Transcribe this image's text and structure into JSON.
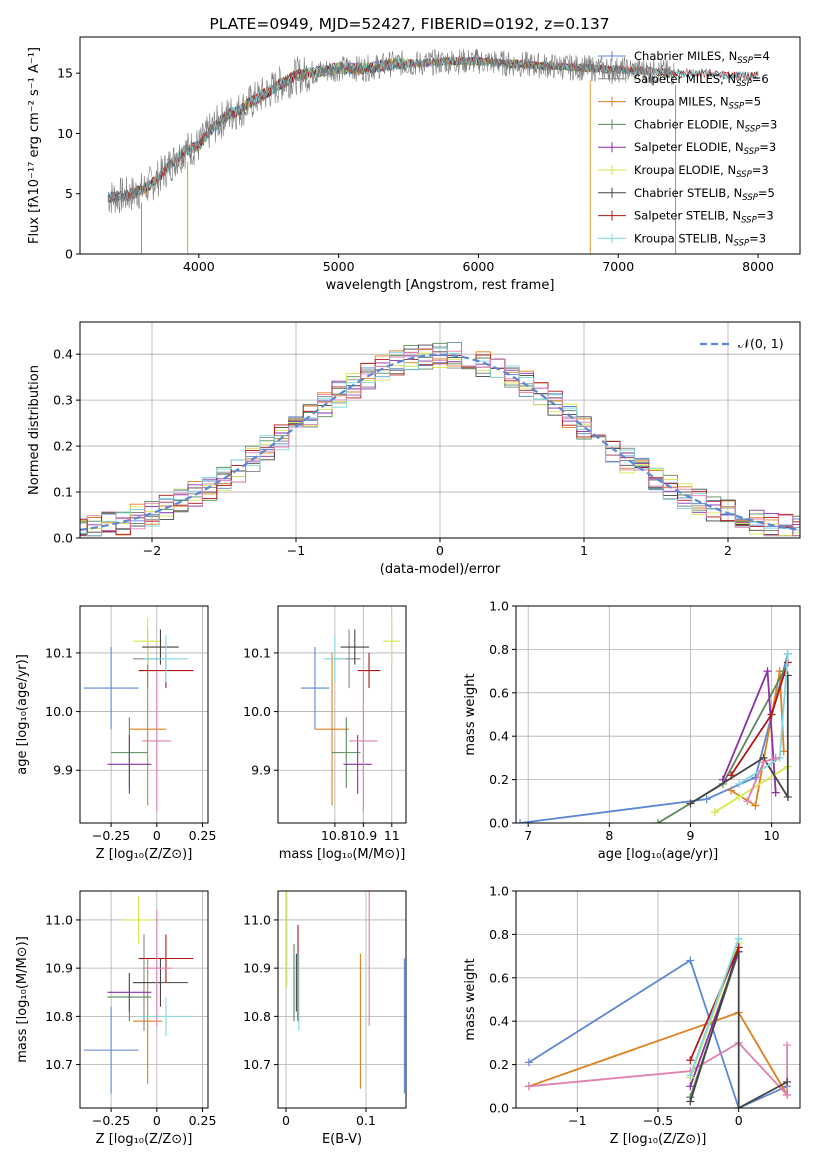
{
  "figure_title": "PLATE=0949, MJD=52427, FIBERID=0192, z=0.137",
  "colors": {
    "chabrier_miles": "#5b87d6",
    "salpeter_miles": "#888888",
    "kroupa_miles": "#e0801e",
    "chabrier_elodie": "#5a8a5a",
    "salpeter_elodie": "#8a2fa8",
    "kroupa_elodie": "#d6e84a",
    "chabrier_stelib": "#444444",
    "salpeter_stelib": "#b01818",
    "kroupa_stelib": "#7fd8e0",
    "pink": "#e07fb0",
    "normal_curve": "#5b87d6"
  },
  "chart_data": [
    {
      "id": "spectrum",
      "type": "line",
      "title": "PLATE=0949, MJD=52427, FIBERID=0192, z=0.137",
      "xlabel": "wavelength [Angstrom, rest frame]",
      "ylabel": "Flux [fλ10⁻¹⁷ erg cm⁻² s⁻¹ A⁻¹]",
      "xlim": [
        3150,
        8300
      ],
      "ylim": [
        0,
        18
      ],
      "xticks": [
        4000,
        5000,
        6000,
        7000,
        8000
      ],
      "yticks": [
        0,
        5,
        10,
        15
      ],
      "grid": false,
      "legend_position": "top-right",
      "legend": [
        "Chabrier MILES, N_SSP=4",
        "Salpeter MILES, N_SSP=6",
        "Kroupa MILES, N_SSP=5",
        "Chabrier ELODIE, N_SSP=3",
        "Salpeter ELODIE, N_SSP=3",
        "Kroupa ELODIE, N_SSP=3",
        "Chabrier STELIB, N_SSP=5",
        "Salpeter STELIB, N_SSP=3",
        "Kroupa STELIB, N_SSP=3"
      ],
      "continuum": {
        "x": [
          3350,
          3500,
          3600,
          3700,
          3800,
          3900,
          4000,
          4100,
          4200,
          4300,
          4400,
          4500,
          4600,
          4700,
          4800,
          5000,
          5200,
          5400,
          5600,
          5800,
          6000,
          6200,
          6500,
          6800,
          7000,
          7200,
          7400,
          7600,
          7800,
          8000
        ],
        "y": [
          4.7,
          4.9,
          5.3,
          6.2,
          7.5,
          8.6,
          9.0,
          10.5,
          11.5,
          12.0,
          12.8,
          13.5,
          14.2,
          14.8,
          15.0,
          15.4,
          15.4,
          15.8,
          15.8,
          16.0,
          16.0,
          15.8,
          15.6,
          15.4,
          15.3,
          15.2,
          15.0,
          15.0,
          14.8,
          14.8
        ]
      }
    },
    {
      "id": "residual_hist",
      "type": "bar",
      "xlabel": "(data-model)/error",
      "ylabel": "Normed distribution",
      "xlim": [
        -2.5,
        2.5
      ],
      "ylim": [
        0,
        0.47
      ],
      "xticks": [
        -2,
        -1,
        0,
        1,
        2
      ],
      "yticks": [
        0.0,
        0.1,
        0.2,
        0.3,
        0.4
      ],
      "grid": true,
      "legend_position": "top-right",
      "legend": [
        "𝒩(0, 1)"
      ]
    },
    {
      "id": "age_vs_Z",
      "type": "scatter",
      "xlabel": "Z [log₁₀(Z/Z⊙)]",
      "ylabel": "age [log₁₀(age/yr)]",
      "xlim": [
        -0.42,
        0.28
      ],
      "ylim": [
        9.81,
        10.18
      ],
      "xticks": [
        -0.25,
        0.0,
        0.25
      ],
      "yticks": [
        9.9,
        10.0,
        10.1
      ],
      "grid": true,
      "points": [
        {
          "x": -0.25,
          "y": 10.04,
          "xerr": 0.15,
          "yerr": 0.07,
          "color": "chabrier_miles"
        },
        {
          "x": -0.05,
          "y": 9.97,
          "xerr": 0.1,
          "yerr": 0.13,
          "color": "kroupa_miles"
        },
        {
          "x": -0.05,
          "y": 10.09,
          "xerr": 0.08,
          "yerr": 0.05,
          "color": "salpeter_miles"
        },
        {
          "x": -0.15,
          "y": 9.93,
          "xerr": 0.1,
          "yerr": 0.06,
          "color": "chabrier_elodie"
        },
        {
          "x": -0.15,
          "y": 9.91,
          "xerr": 0.12,
          "yerr": 0.05,
          "color": "salpeter_elodie"
        },
        {
          "x": -0.05,
          "y": 10.12,
          "xerr": 0.08,
          "yerr": 0.04,
          "color": "kroupa_elodie"
        },
        {
          "x": 0.02,
          "y": 10.11,
          "xerr": 0.1,
          "yerr": 0.03,
          "color": "chabrier_stelib"
        },
        {
          "x": 0.05,
          "y": 10.07,
          "xerr": 0.15,
          "yerr": 0.03,
          "color": "salpeter_stelib"
        },
        {
          "x": 0.05,
          "y": 10.09,
          "xerr": 0.12,
          "yerr": 0.04,
          "color": "kroupa_stelib"
        },
        {
          "x": 0.0,
          "y": 9.95,
          "xerr": 0.08,
          "yerr": 0.12,
          "color": "pink"
        }
      ]
    },
    {
      "id": "age_vs_mass",
      "type": "scatter",
      "xlabel": "mass [log₁₀(M/M⊙)]",
      "ylabel": "",
      "xlim": [
        10.6,
        11.05
      ],
      "ylim": [
        9.81,
        10.18
      ],
      "xticks": [
        10.8,
        10.9,
        11.0
      ],
      "yticks": [
        9.9,
        10.0,
        10.1
      ],
      "grid": true,
      "points": [
        {
          "x": 10.73,
          "y": 10.04,
          "xerr": 0.05,
          "yerr": 0.07,
          "color": "chabrier_miles"
        },
        {
          "x": 10.79,
          "y": 9.97,
          "xerr": 0.06,
          "yerr": 0.13,
          "color": "kroupa_miles"
        },
        {
          "x": 10.85,
          "y": 10.09,
          "xerr": 0.04,
          "yerr": 0.05,
          "color": "salpeter_miles"
        },
        {
          "x": 10.84,
          "y": 9.93,
          "xerr": 0.05,
          "yerr": 0.06,
          "color": "chabrier_elodie"
        },
        {
          "x": 10.88,
          "y": 9.91,
          "xerr": 0.05,
          "yerr": 0.05,
          "color": "salpeter_elodie"
        },
        {
          "x": 11.0,
          "y": 10.12,
          "xerr": 0.03,
          "yerr": 0.04,
          "color": "kroupa_elodie"
        },
        {
          "x": 10.87,
          "y": 10.11,
          "xerr": 0.05,
          "yerr": 0.03,
          "color": "chabrier_stelib"
        },
        {
          "x": 10.92,
          "y": 10.07,
          "xerr": 0.04,
          "yerr": 0.03,
          "color": "salpeter_stelib"
        },
        {
          "x": 10.8,
          "y": 10.09,
          "xerr": 0.04,
          "yerr": 0.04,
          "color": "kroupa_stelib"
        },
        {
          "x": 10.9,
          "y": 9.95,
          "xerr": 0.05,
          "yerr": 0.12,
          "color": "pink"
        }
      ]
    },
    {
      "id": "mass_weight_vs_age",
      "type": "line",
      "xlabel": "age [log₁₀(age/yr)]",
      "ylabel": "mass weight",
      "xlim": [
        6.85,
        10.35
      ],
      "ylim": [
        0,
        1.0
      ],
      "xticks": [
        7,
        8,
        9,
        10
      ],
      "yticks": [
        0.0,
        0.2,
        0.4,
        0.6,
        0.8,
        1.0
      ],
      "grid": true,
      "series": [
        {
          "color": "chabrier_miles",
          "x": [
            6.9,
            9.2,
            9.8,
            10.2
          ],
          "y": [
            0.0,
            0.11,
            0.21,
            0.78
          ]
        },
        {
          "color": "kroupa_miles",
          "x": [
            9.5,
            9.8,
            10.1,
            10.15
          ],
          "y": [
            0.15,
            0.08,
            0.7,
            0.33
          ]
        },
        {
          "color": "chabrier_elodie",
          "x": [
            8.6,
            9.4,
            10.15
          ],
          "y": [
            0.0,
            0.18,
            0.7
          ]
        },
        {
          "color": "salpeter_elodie",
          "x": [
            9.4,
            9.95,
            10.05
          ],
          "y": [
            0.2,
            0.7,
            0.14
          ]
        },
        {
          "color": "kroupa_elodie",
          "x": [
            9.3,
            9.6,
            10.2
          ],
          "y": [
            0.05,
            0.12,
            0.26
          ]
        },
        {
          "color": "chabrier_stelib",
          "x": [
            9.0,
            9.9,
            10.2,
            10.2
          ],
          "y": [
            0.09,
            0.3,
            0.12,
            0.68
          ]
        },
        {
          "color": "salpeter_stelib",
          "x": [
            9.5,
            10.0,
            10.2
          ],
          "y": [
            0.22,
            0.5,
            0.74
          ]
        },
        {
          "color": "kroupa_stelib",
          "x": [
            9.6,
            10.1,
            10.2
          ],
          "y": [
            0.18,
            0.3,
            0.78
          ]
        },
        {
          "color": "pink",
          "x": [
            9.7,
            9.9,
            10.05
          ],
          "y": [
            0.1,
            0.28,
            0.3
          ]
        }
      ]
    },
    {
      "id": "mass_vs_Z",
      "type": "scatter",
      "xlabel": "Z [log₁₀(Z/Z⊙)]",
      "ylabel": "mass [log₁₀(M/M⊙)]",
      "xlim": [
        -0.42,
        0.28
      ],
      "ylim": [
        10.61,
        11.06
      ],
      "xticks": [
        -0.25,
        0.0,
        0.25
      ],
      "yticks": [
        10.7,
        10.8,
        10.9,
        11.0
      ],
      "grid": true,
      "points": [
        {
          "x": -0.25,
          "y": 10.73,
          "xerr": 0.15,
          "yerr": 0.09,
          "color": "chabrier_miles"
        },
        {
          "x": -0.05,
          "y": 10.79,
          "xerr": 0.08,
          "yerr": 0.13,
          "color": "kroupa_miles"
        },
        {
          "x": -0.07,
          "y": 10.87,
          "xerr": 0.06,
          "yerr": 0.1,
          "color": "salpeter_miles"
        },
        {
          "x": -0.15,
          "y": 10.84,
          "xerr": 0.12,
          "yerr": 0.05,
          "color": "chabrier_elodie"
        },
        {
          "x": -0.15,
          "y": 10.85,
          "xerr": 0.12,
          "yerr": 0.04,
          "color": "salpeter_elodie"
        },
        {
          "x": -0.1,
          "y": 11.0,
          "xerr": 0.08,
          "yerr": 0.05,
          "color": "kroupa_elodie"
        },
        {
          "x": 0.02,
          "y": 10.87,
          "xerr": 0.15,
          "yerr": 0.05,
          "color": "chabrier_stelib"
        },
        {
          "x": 0.05,
          "y": 10.92,
          "xerr": 0.15,
          "yerr": 0.05,
          "color": "salpeter_stelib"
        },
        {
          "x": 0.05,
          "y": 10.8,
          "xerr": 0.15,
          "yerr": 0.04,
          "color": "kroupa_stelib"
        },
        {
          "x": 0.0,
          "y": 10.9,
          "xerr": 0.08,
          "yerr": 0.12,
          "color": "pink"
        }
      ]
    },
    {
      "id": "mass_vs_ebv",
      "type": "scatter",
      "xlabel": "E(B-V)",
      "ylabel": "",
      "xlim": [
        -0.01,
        0.15
      ],
      "ylim": [
        10.61,
        11.06
      ],
      "xticks": [
        0.0,
        0.1
      ],
      "yticks": [
        10.7,
        10.8,
        10.9,
        11.0
      ],
      "grid": true,
      "points": [
        {
          "x": 0.148,
          "y": 10.78,
          "xerr": 0,
          "yerr": 0.14,
          "color": "chabrier_miles"
        },
        {
          "x": 0.093,
          "y": 10.79,
          "xerr": 0,
          "yerr": 0.14,
          "color": "kroupa_miles"
        },
        {
          "x": 0.104,
          "y": 10.95,
          "xerr": 0,
          "yerr": 0.17,
          "color": "pink"
        },
        {
          "x": 0.01,
          "y": 10.87,
          "xerr": 0,
          "yerr": 0.08,
          "color": "chabrier_elodie"
        },
        {
          "x": 0.015,
          "y": 10.89,
          "xerr": 0,
          "yerr": 0.1,
          "color": "salpeter_stelib"
        },
        {
          "x": 0.016,
          "y": 10.85,
          "xerr": 0,
          "yerr": 0.08,
          "color": "kroupa_stelib"
        },
        {
          "x": 0.001,
          "y": 11.0,
          "xerr": 0,
          "yerr": 0.14,
          "color": "kroupa_elodie"
        },
        {
          "x": 0.013,
          "y": 10.87,
          "xerr": 0,
          "yerr": 0.06,
          "color": "chabrier_stelib"
        }
      ]
    },
    {
      "id": "mass_weight_vs_Z",
      "type": "line",
      "xlabel": "Z [log₁₀(Z/Z⊙)]",
      "ylabel": "mass weight",
      "xlim": [
        -1.38,
        0.38
      ],
      "ylim": [
        0,
        1.0
      ],
      "xticks": [
        -1.0,
        -0.5,
        0.0
      ],
      "yticks": [
        0.0,
        0.2,
        0.4,
        0.6,
        0.8,
        1.0
      ],
      "grid": true,
      "series": [
        {
          "color": "chabrier_miles",
          "x": [
            -1.3,
            -0.3,
            0.0,
            0.3
          ],
          "y": [
            0.21,
            0.68,
            0.0,
            0.1
          ]
        },
        {
          "color": "kroupa_miles",
          "x": [
            -1.3,
            0.0,
            0.3
          ],
          "y": [
            0.1,
            0.44,
            0.06
          ]
        },
        {
          "color": "pink",
          "x": [
            -1.3,
            -0.3,
            0.0,
            0.3,
            0.3
          ],
          "y": [
            0.1,
            0.17,
            0.3,
            0.06,
            0.29
          ]
        },
        {
          "color": "chabrier_elodie",
          "x": [
            -0.3,
            0.0
          ],
          "y": [
            0.05,
            0.72
          ]
        },
        {
          "color": "salpeter_elodie",
          "x": [
            -0.3,
            0.0
          ],
          "y": [
            0.1,
            0.72
          ]
        },
        {
          "color": "kroupa_elodie",
          "x": [
            -0.3,
            0.0
          ],
          "y": [
            0.14,
            0.76
          ]
        },
        {
          "color": "chabrier_stelib",
          "x": [
            -0.3,
            0.0,
            0.0,
            0.3
          ],
          "y": [
            0.03,
            0.74,
            0.0,
            0.12
          ]
        },
        {
          "color": "salpeter_stelib",
          "x": [
            -0.3,
            0.0
          ],
          "y": [
            0.22,
            0.74
          ]
        },
        {
          "color": "kroupa_stelib",
          "x": [
            -0.3,
            0.0
          ],
          "y": [
            0.15,
            0.78
          ]
        }
      ]
    }
  ]
}
